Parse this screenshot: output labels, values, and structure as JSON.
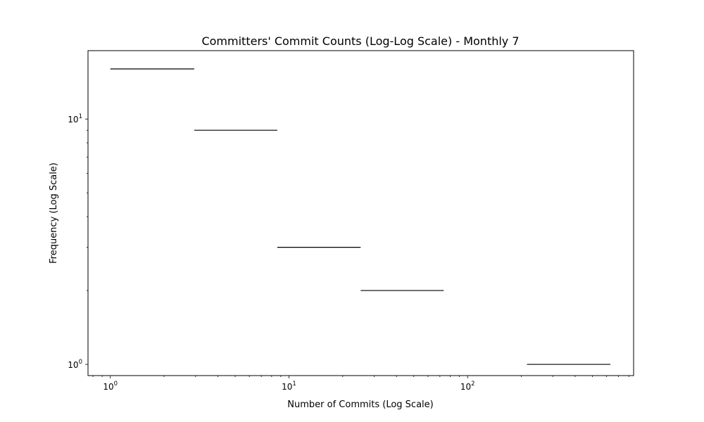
{
  "chart_data": {
    "type": "histogram",
    "title": "Committers' Commit Counts (Log-Log Scale) - Monthly 7",
    "xlabel": "Number of Commits (Log Scale)",
    "ylabel": "Frequency (Log Scale)",
    "xscale": "log",
    "yscale": "log",
    "xlim": [
      0.75,
      850
    ],
    "ylim": [
      0.9,
      19
    ],
    "grid": false,
    "line_color": "#000000",
    "x_ticks": [
      {
        "value": 1,
        "base": "10",
        "exp": "0"
      },
      {
        "value": 10,
        "base": "10",
        "exp": "1"
      },
      {
        "value": 100,
        "base": "10",
        "exp": "2"
      }
    ],
    "y_ticks": [
      {
        "value": 1,
        "base": "10",
        "exp": "0"
      },
      {
        "value": 10,
        "base": "10",
        "exp": "1"
      }
    ],
    "bins": [
      {
        "x_start": 1.0,
        "x_end": 2.95,
        "count": 16
      },
      {
        "x_start": 2.95,
        "x_end": 8.6,
        "count": 9
      },
      {
        "x_start": 8.6,
        "x_end": 25.2,
        "count": 3
      },
      {
        "x_start": 25.2,
        "x_end": 73.5,
        "count": 2
      },
      {
        "x_start": 73.5,
        "x_end": 215,
        "count": 0
      },
      {
        "x_start": 215,
        "x_end": 630,
        "count": 1
      }
    ]
  }
}
